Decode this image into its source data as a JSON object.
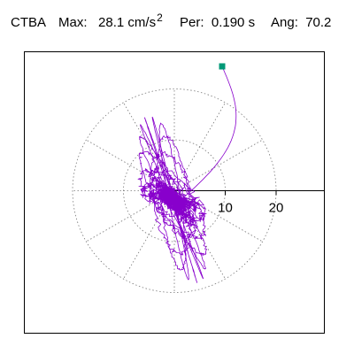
{
  "header": {
    "station": "CTBA",
    "max_label": "Max:",
    "max_value": "28.1",
    "max_unit": "cm/s",
    "max_unit_power": "2",
    "per_label": "Per:",
    "per_value": "0.190 s",
    "ang_label": "Ang:",
    "ang_value": "70.2"
  },
  "chart_data": {
    "type": "polar-orbit",
    "radial_ticks": [
      "10",
      "20"
    ],
    "ring_values": [
      10,
      20
    ],
    "radial_max": 28.1,
    "angle_deg": 70.2,
    "trace_color": "#8800cc",
    "marker_color": "#009977"
  }
}
